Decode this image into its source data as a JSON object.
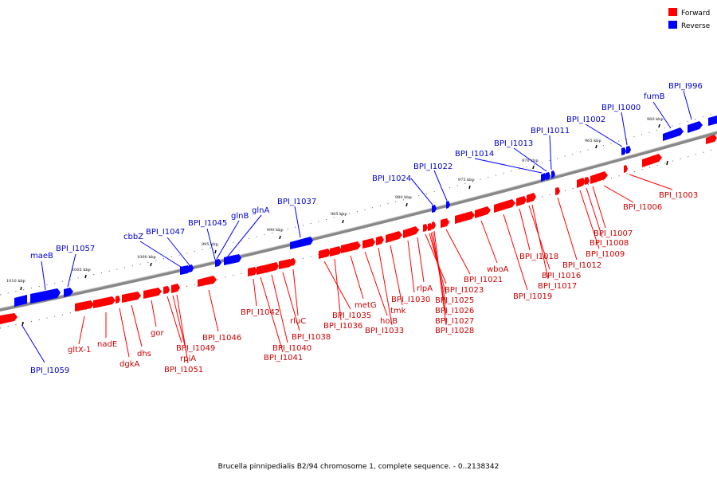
{
  "caption": "Brucella pinnipedialis B2/94 chromosome 1, complete sequence. - 0..2138342",
  "legend": {
    "forward": {
      "label": "Forward",
      "color": "#ff0000"
    },
    "reverse": {
      "label": "Reverse",
      "color": "#0000ff"
    }
  },
  "ticks": [
    "1010 kbp",
    "1005 kbp",
    "1000 kbp",
    "995 kbp",
    "990 kbp",
    "985 kbp",
    "980 kbp",
    "975 kbp",
    "970 kbp",
    "965 kbp",
    "960 kbp"
  ],
  "reverse_labels": [
    "BPI_I1059",
    "maeB",
    "BPI_I1057",
    "cbbZ",
    "BPI_I1047",
    "BPI_I1045",
    "glnB",
    "glnA",
    "BPI_I1037",
    "BPI_I1024",
    "BPI_I1022",
    "BPI_I1014",
    "BPI_I1013",
    "BPI_I1011",
    "BPI_I1002",
    "BPI_I1000",
    "fumB",
    "BPI_I996"
  ],
  "forward_labels": [
    "gltX-1",
    "nadE",
    "dgkA",
    "dhs",
    "gor",
    "BPI_I1049",
    "rpiA",
    "BPI_I1051",
    "BPI_I1046",
    "BPI_I1042",
    "BPI_I1041",
    "BPI_I1040",
    "BPI_I1038",
    "rluC",
    "BPI_I1035",
    "BPI_I1036",
    "metG",
    "holB",
    "BPI_I1033",
    "tmk",
    "BPI_I1030",
    "rlpA",
    "BPI_I1023",
    "BPI_I1025",
    "BPI_I1026",
    "BPI_I1027",
    "BPI_I1028",
    "BPI_I1021",
    "wboA",
    "BPI_I1018",
    "BPI_I1019",
    "BPI_I1016",
    "BPI_I1017",
    "BPI_I1012",
    "BPI_I1009",
    "BPI_I1008",
    "BPI_I1007",
    "BPI_I1006",
    "BPI_I1003"
  ]
}
